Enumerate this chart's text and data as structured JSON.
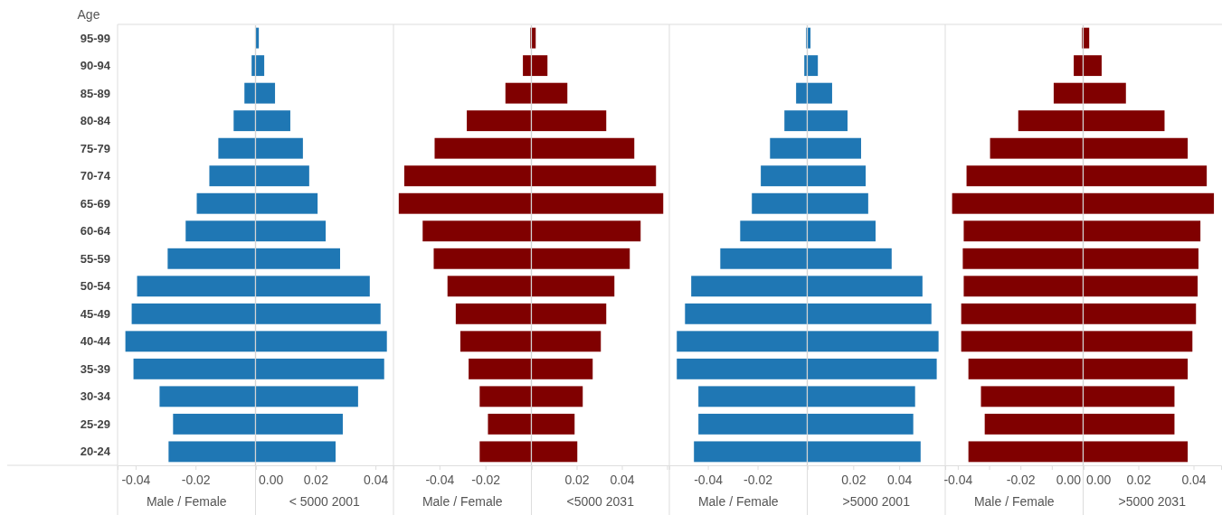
{
  "chart_data": [
    {
      "type": "bar",
      "orientation": "horizontal",
      "ylabel": "Age",
      "xlabel": "Male / Female",
      "categories": [
        "95-99",
        "90-94",
        "85-89",
        "80-84",
        "75-79",
        "70-74",
        "65-69",
        "60-64",
        "55-59",
        "50-54",
        "45-49",
        "40-44",
        "35-39",
        "30-34",
        "25-29",
        "20-24"
      ],
      "color": "#1f77b4",
      "values": [
        null,
        -0.0013,
        -0.0037,
        -0.0073,
        -0.0124,
        -0.0154,
        -0.0196,
        -0.0233,
        -0.0293,
        -0.0395,
        -0.0413,
        -0.0434,
        -0.0407,
        -0.032,
        -0.0275,
        -0.029
      ],
      "xlim": [
        -0.046,
        0
      ],
      "xticks": [
        -0.04,
        -0.02
      ]
    },
    {
      "type": "bar",
      "orientation": "horizontal",
      "xlabel": "< 5000 2001",
      "tick_labels": "x",
      "categories": [
        null,
        null,
        null,
        null,
        null,
        null,
        null,
        null,
        null,
        null,
        null,
        null,
        null,
        null,
        null,
        null
      ],
      "color": "#1f77b4",
      "values": [
        0.0011,
        0.0029,
        0.0065,
        0.0116,
        0.0158,
        0.0179,
        0.0207,
        0.0234,
        0.0282,
        0.0381,
        0.0417,
        0.0438,
        0.0429,
        0.0342,
        0.0291,
        0.0267
      ],
      "xlim": [
        0,
        0.046
      ],
      "xticks": [
        {
          "value": 0,
          "label": "0.00"
        },
        0.02,
        0.04
      ]
    },
    {
      "type": "bar",
      "orientation": "horizontal",
      "xlabel": "Male / Female",
      "tick_labels": "x",
      "categories": [
        null,
        null,
        null,
        null,
        null,
        null,
        null,
        null,
        null,
        null,
        null,
        null,
        null,
        null,
        null,
        null
      ],
      "color": "#800000",
      "values": [
        -0.0005,
        -0.0037,
        -0.0113,
        -0.0281,
        -0.0421,
        -0.0553,
        -0.0577,
        -0.0473,
        -0.0425,
        -0.0365,
        -0.0329,
        -0.0309,
        -0.0273,
        -0.0225,
        -0.0189,
        -0.0225
      ],
      "xlim": [
        -0.06,
        0
      ],
      "xticks": [
        {
          "value": -0.06,
          "label": null
        },
        -0.04,
        -0.02
      ]
    },
    {
      "type": "bar",
      "orientation": "horizontal",
      "xlabel": "<5000 2031",
      "tick_labels": "x",
      "categories": [
        null,
        null,
        null,
        null,
        null,
        null,
        null,
        null,
        null,
        null,
        null,
        null,
        null,
        null,
        null,
        null
      ],
      "color": "#800000",
      "values": [
        0.0019,
        0.0071,
        0.0159,
        0.0331,
        0.0455,
        0.0551,
        0.0583,
        0.0483,
        0.0435,
        0.0367,
        0.0331,
        0.0307,
        0.0271,
        0.0227,
        0.0191,
        0.0203
      ],
      "xlim": [
        0,
        0.061
      ],
      "xticks": [
        0.02,
        0.04,
        {
          "value": 0.06,
          "label": null
        }
      ]
    },
    {
      "type": "bar",
      "orientation": "horizontal",
      "xlabel": "Male / Female",
      "tick_labels": "x",
      "categories": [
        null,
        null,
        null,
        null,
        null,
        null,
        null,
        null,
        null,
        null,
        null,
        null,
        null,
        null,
        null,
        null
      ],
      "color": "#1f77b4",
      "values": [
        -0.0005,
        -0.0012,
        -0.0045,
        -0.0092,
        -0.015,
        -0.0187,
        -0.0223,
        -0.027,
        -0.035,
        -0.0467,
        -0.0492,
        -0.0525,
        -0.0525,
        -0.0438,
        -0.0438,
        -0.0456
      ],
      "xlim": [
        -0.0555,
        0
      ],
      "xticks": [
        -0.04,
        -0.02
      ]
    },
    {
      "type": "bar",
      "orientation": "horizontal",
      "xlabel": ">5000 2001",
      "tick_labels": "x",
      "categories": [
        null,
        null,
        null,
        null,
        null,
        null,
        null,
        null,
        null,
        null,
        null,
        null,
        null,
        null,
        null,
        null
      ],
      "color": "#1f77b4",
      "values": [
        0.0014,
        0.0046,
        0.0108,
        0.0175,
        0.0234,
        0.0254,
        0.0265,
        0.0297,
        0.0367,
        0.0501,
        0.054,
        0.0571,
        0.0563,
        0.0469,
        0.0461,
        0.0493
      ],
      "xlim": [
        0,
        0.06
      ],
      "xticks": [
        0.02,
        0.04
      ]
    },
    {
      "type": "bar",
      "orientation": "horizontal",
      "xlabel": "Male / Female",
      "tick_labels": "x",
      "categories": [
        null,
        null,
        null,
        null,
        null,
        null,
        null,
        null,
        null,
        null,
        null,
        null,
        null,
        null,
        null,
        null
      ],
      "color": "#800000",
      "values": [
        -0.0004,
        -0.003,
        -0.0094,
        -0.0207,
        -0.0297,
        -0.0372,
        -0.0418,
        -0.0381,
        -0.0384,
        -0.0381,
        -0.0389,
        -0.0389,
        -0.0366,
        -0.0326,
        -0.0314,
        -0.0366
      ],
      "xlim": [
        -0.044,
        0
      ],
      "xticks": [
        -0.04,
        {
          "value": -0.03,
          "label": null
        },
        -0.02,
        {
          "value": -0.01,
          "label": null
        },
        {
          "value": 0,
          "label": "0.00"
        }
      ]
    },
    {
      "type": "bar",
      "orientation": "horizontal",
      "xlabel": ">5000 2031",
      "tick_labels": "x",
      "categories": [
        null,
        null,
        null,
        null,
        null,
        null,
        null,
        null,
        null,
        null,
        null,
        null,
        null,
        null,
        null,
        null
      ],
      "color": "#800000",
      "values": [
        0.0022,
        0.0067,
        0.0155,
        0.0295,
        0.0379,
        0.0448,
        0.0474,
        0.0425,
        0.0418,
        0.0415,
        0.0409,
        0.0396,
        0.0379,
        0.0331,
        0.0331,
        0.0379
      ],
      "xlim": [
        0,
        0.05
      ],
      "xticks": [
        {
          "value": 0,
          "label": "0.00"
        },
        0.02,
        0.04
      ]
    }
  ]
}
